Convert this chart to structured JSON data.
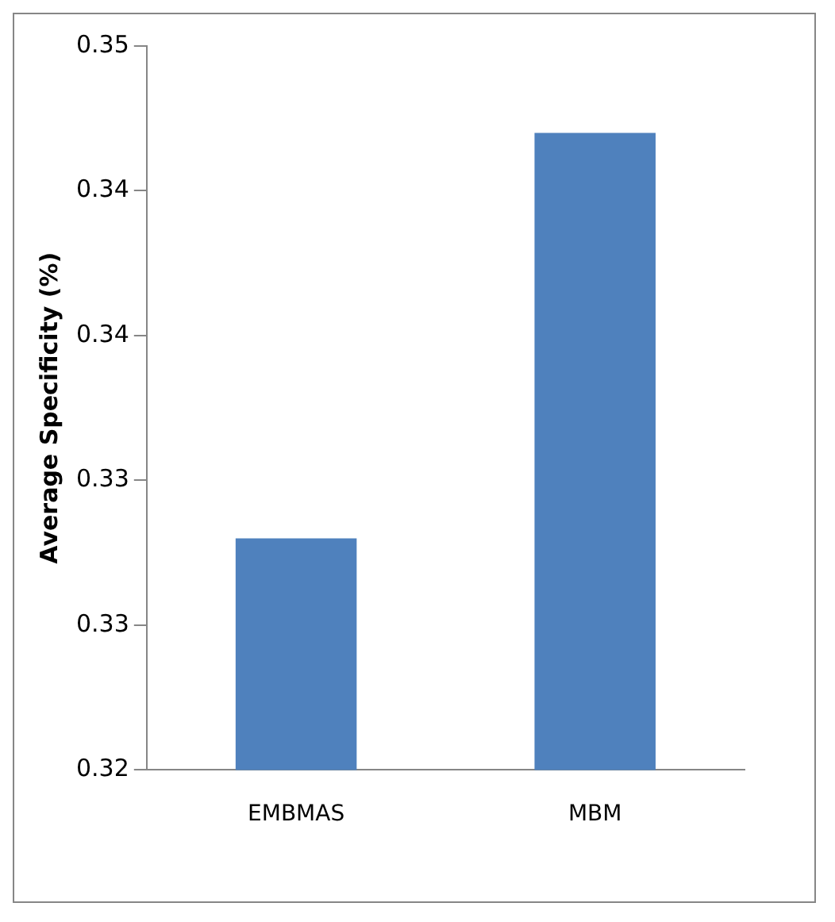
{
  "chart_data": {
    "type": "bar",
    "ylabel": "Average Specificity (%)",
    "categories": [
      "EMBMAS",
      "MBM"
    ],
    "values": [
      0.328,
      0.342
    ],
    "color": "#4f81bd",
    "ylim": [
      0.32,
      0.345
    ],
    "yticks": [
      {
        "value": 0.32,
        "label": "0.32"
      },
      {
        "value": 0.325,
        "label": "0.33"
      },
      {
        "value": 0.33,
        "label": "0.33"
      },
      {
        "value": 0.335,
        "label": "0.34"
      },
      {
        "value": 0.34,
        "label": "0.34"
      },
      {
        "value": 0.345,
        "label": "0.35"
      }
    ],
    "grid": false,
    "legend": false
  }
}
